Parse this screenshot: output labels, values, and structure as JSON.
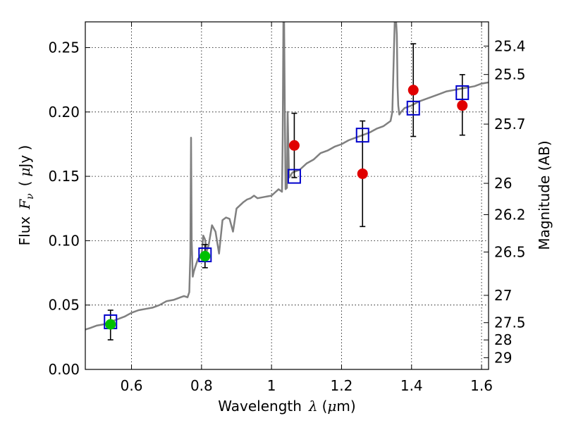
{
  "chart_data": {
    "type": "scatter",
    "xlabel": "Wavelength",
    "xlabel_symbol": "λ",
    "xlabel_unit_prefix": "(",
    "xlabel_unit_mu": "μ",
    "xlabel_unit_suffix": "m)",
    "ylabel": "Flux",
    "ylabel_symbol": "F",
    "ylabel_subscript": "ν",
    "ylabel_unit_prefix": "(",
    "ylabel_unit_mu": "μ",
    "ylabel_unit_suffix": "Jy )",
    "y2label": "Magnitude (AB)",
    "xlim": [
      0.468,
      1.62
    ],
    "ylim": [
      0.0,
      0.27
    ],
    "grid": true,
    "x_ticks": [
      0.6,
      0.8,
      1.0,
      1.2,
      1.4,
      1.6
    ],
    "x_tick_labels": [
      "0.6",
      "0.8",
      "1",
      "1.2",
      "1.4",
      "1.6"
    ],
    "y_ticks": [
      0.0,
      0.05,
      0.1,
      0.15,
      0.2,
      0.25
    ],
    "y_tick_labels": [
      "0.00",
      "0.05",
      "0.10",
      "0.15",
      "0.20",
      "0.25"
    ],
    "mag_ticks": [
      25.4,
      25.5,
      25.7,
      26.0,
      26.2,
      26.5,
      27.0,
      27.5,
      28.0,
      29.0
    ],
    "mag_tick_labels": [
      "25.4",
      "25.5",
      "25.7",
      "26",
      "26.2",
      "26.5",
      "27",
      "27.5",
      "28",
      "29"
    ],
    "series": [
      {
        "name": "model_spectrum",
        "kind": "line",
        "color": "#808080",
        "x": [
          0.468,
          0.48,
          0.5,
          0.52,
          0.54,
          0.56,
          0.58,
          0.6,
          0.62,
          0.64,
          0.66,
          0.68,
          0.7,
          0.72,
          0.74,
          0.75,
          0.76,
          0.765,
          0.768,
          0.77,
          0.772,
          0.775,
          0.778,
          0.785,
          0.79,
          0.8,
          0.805,
          0.81,
          0.815,
          0.82,
          0.83,
          0.84,
          0.85,
          0.86,
          0.87,
          0.88,
          0.89,
          0.9,
          0.92,
          0.93,
          0.94,
          0.95,
          0.96,
          0.98,
          1.0,
          1.02,
          1.03,
          1.032,
          1.034,
          1.036,
          1.038,
          1.04,
          1.044,
          1.046,
          1.05,
          1.06,
          1.08,
          1.1,
          1.12,
          1.14,
          1.16,
          1.18,
          1.2,
          1.22,
          1.24,
          1.26,
          1.28,
          1.3,
          1.32,
          1.34,
          1.345,
          1.35,
          1.352,
          1.354,
          1.356,
          1.358,
          1.36,
          1.362,
          1.365,
          1.37,
          1.38,
          1.4,
          1.42,
          1.44,
          1.46,
          1.48,
          1.5,
          1.52,
          1.54,
          1.56,
          1.58,
          1.6,
          1.62
        ],
        "y": [
          0.031,
          0.032,
          0.034,
          0.035,
          0.037,
          0.039,
          0.041,
          0.044,
          0.046,
          0.047,
          0.048,
          0.05,
          0.053,
          0.054,
          0.056,
          0.057,
          0.056,
          0.06,
          0.09,
          0.18,
          0.1,
          0.072,
          0.076,
          0.082,
          0.086,
          0.088,
          0.104,
          0.101,
          0.092,
          0.096,
          0.112,
          0.107,
          0.09,
          0.116,
          0.118,
          0.117,
          0.107,
          0.125,
          0.13,
          0.132,
          0.133,
          0.135,
          0.133,
          0.134,
          0.135,
          0.14,
          0.138,
          0.18,
          0.27,
          0.27,
          0.2,
          0.14,
          0.141,
          0.2,
          0.149,
          0.153,
          0.155,
          0.16,
          0.163,
          0.168,
          0.17,
          0.173,
          0.175,
          0.178,
          0.18,
          0.182,
          0.184,
          0.187,
          0.189,
          0.193,
          0.2,
          0.25,
          0.27,
          0.27,
          0.27,
          0.26,
          0.22,
          0.205,
          0.198,
          0.2,
          0.203,
          0.205,
          0.208,
          0.21,
          0.212,
          0.214,
          0.216,
          0.217,
          0.218,
          0.219,
          0.22,
          0.222,
          0.223
        ]
      },
      {
        "name": "model_photometry",
        "kind": "open_square",
        "color": "#0000cc",
        "x": [
          0.54,
          0.81,
          1.065,
          1.26,
          1.405,
          1.545
        ],
        "y": [
          0.037,
          0.089,
          0.15,
          0.182,
          0.203,
          0.215
        ]
      },
      {
        "name": "observed_optical",
        "kind": "filled_circle",
        "color": "#00c000",
        "x": [
          0.54,
          0.81
        ],
        "y": [
          0.035,
          0.088
        ]
      },
      {
        "name": "observed_nir",
        "kind": "filled_circle",
        "color": "#e00000",
        "x": [
          1.065,
          1.26,
          1.405,
          1.545
        ],
        "y": [
          0.174,
          0.152,
          0.217,
          0.205
        ]
      },
      {
        "name": "error_bars",
        "kind": "errorbar",
        "color": "#000000",
        "x": [
          0.54,
          0.81,
          1.065,
          1.26,
          1.405,
          1.545
        ],
        "y_low": [
          0.023,
          0.079,
          0.149,
          0.111,
          0.181,
          0.182
        ],
        "y_high": [
          0.046,
          0.097,
          0.199,
          0.193,
          0.253,
          0.229
        ]
      }
    ]
  }
}
